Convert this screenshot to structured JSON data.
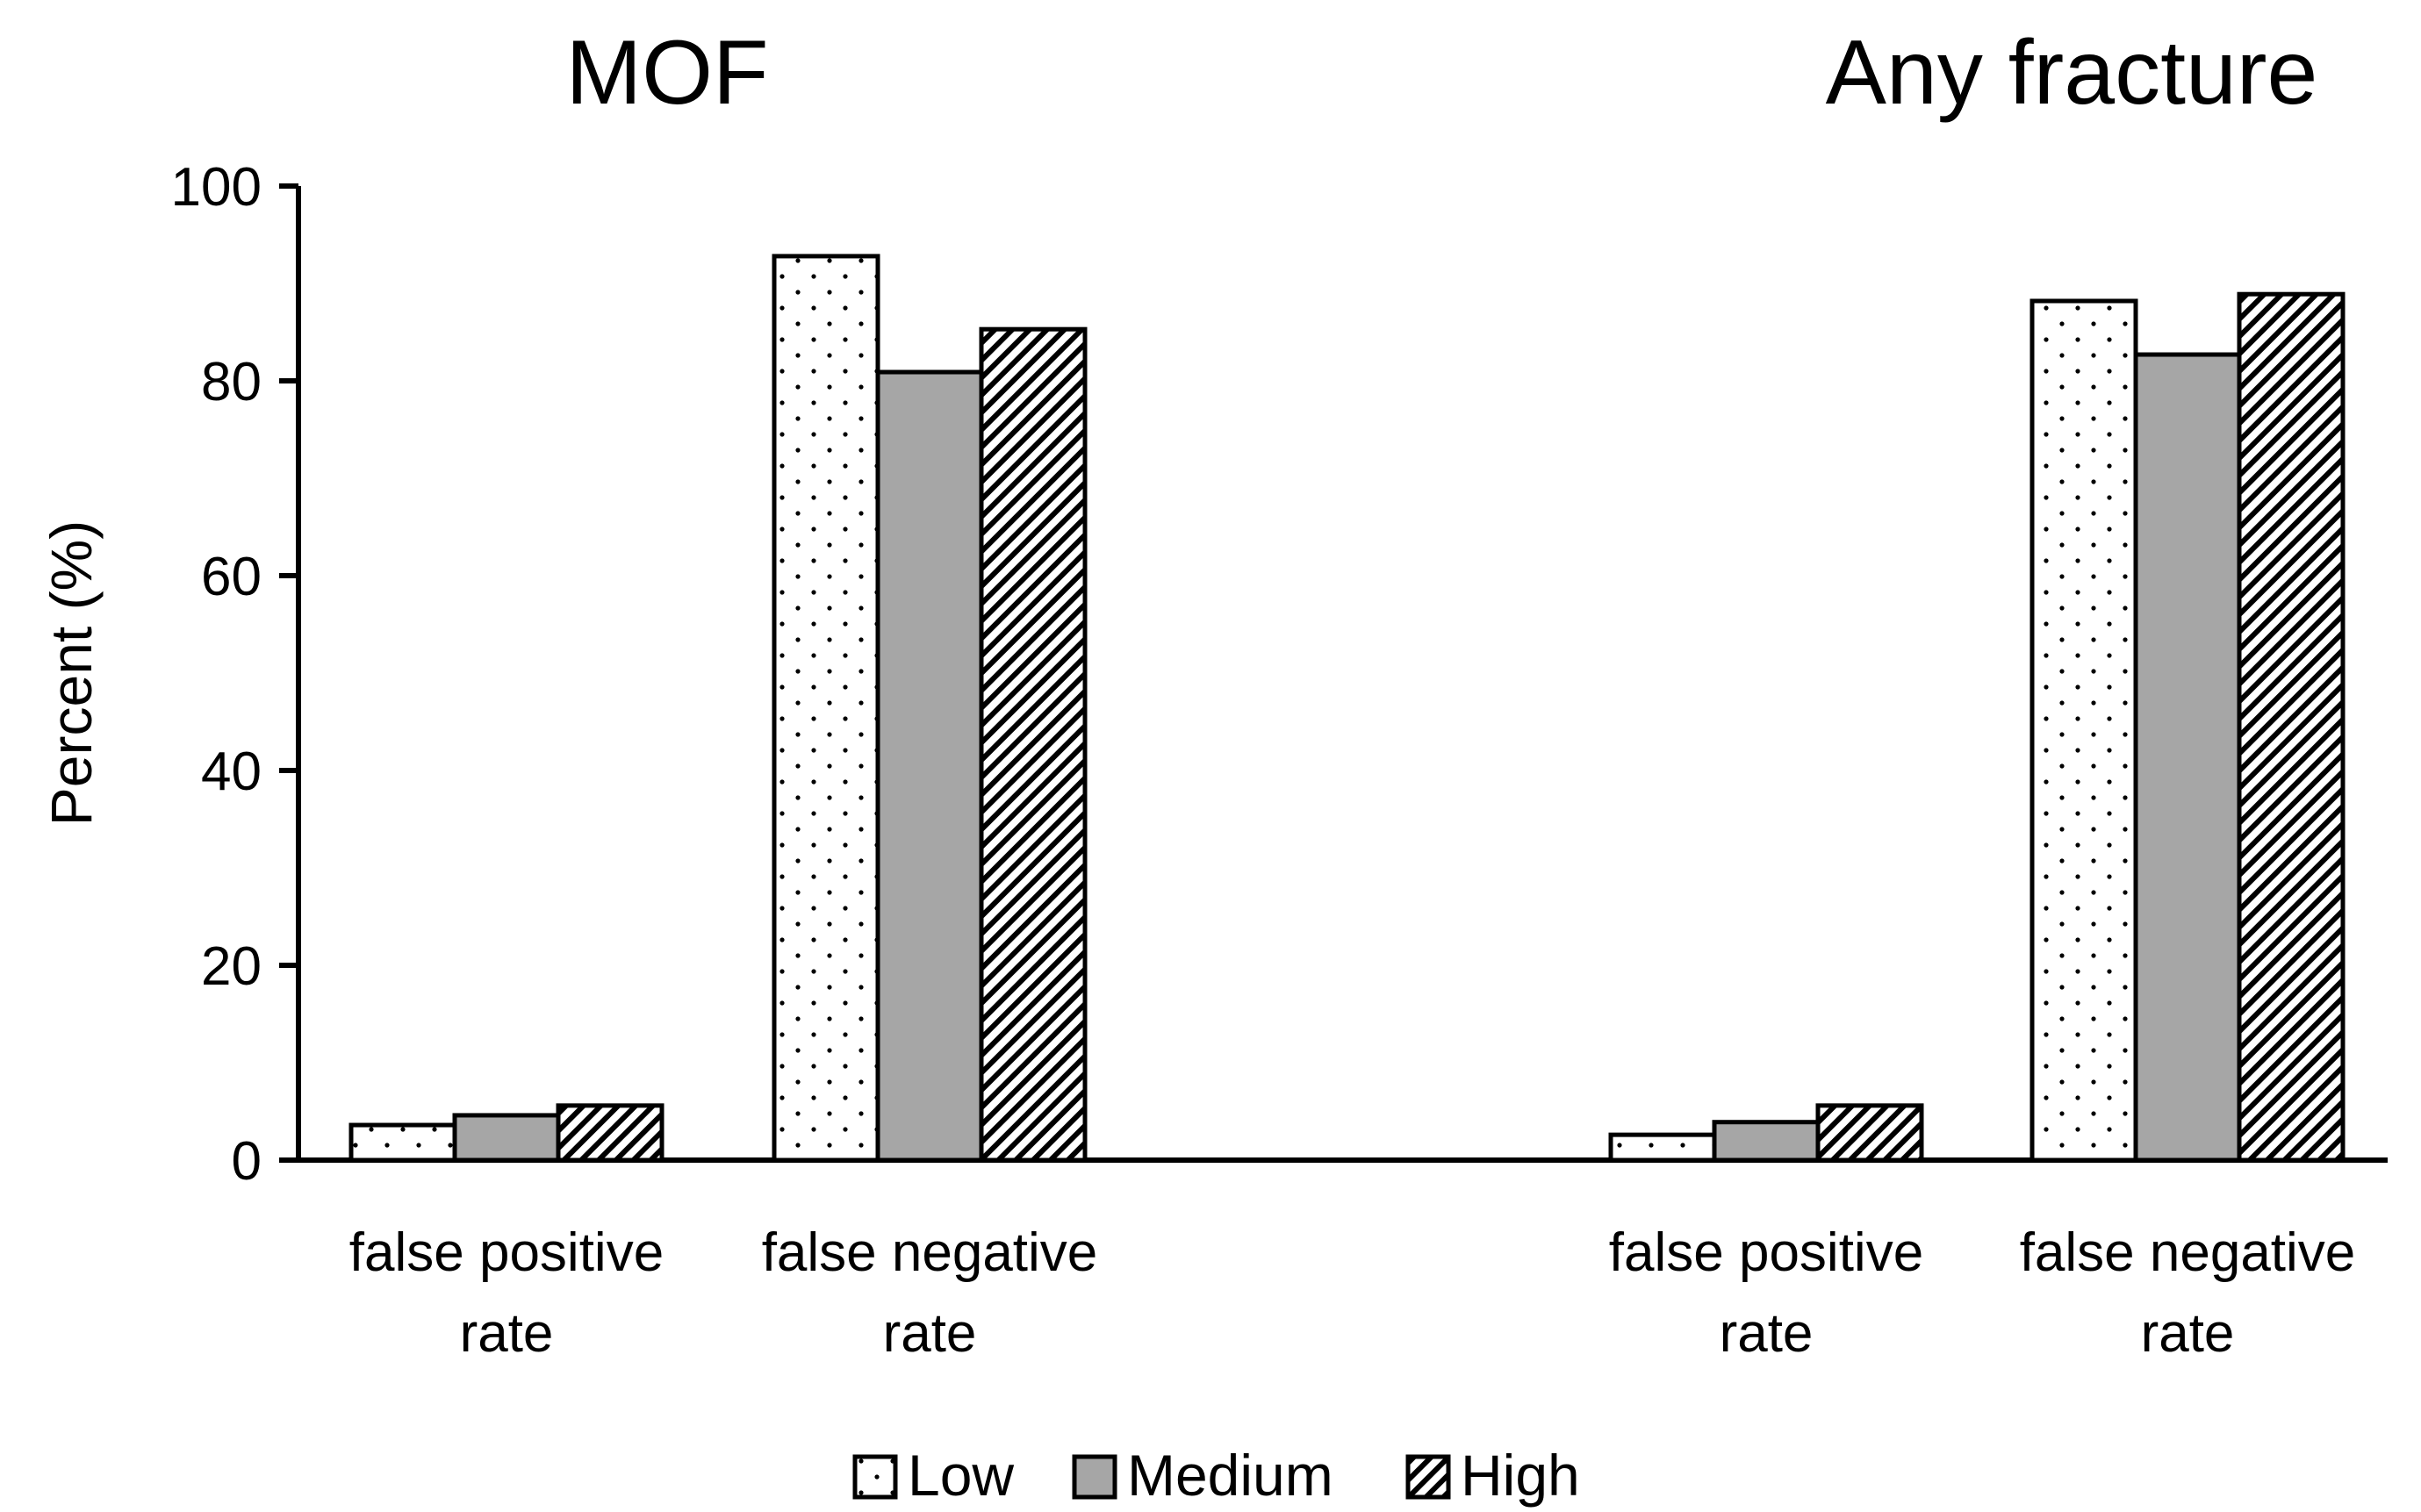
{
  "chart_data": {
    "type": "bar",
    "ylabel": "Percent (%)",
    "ylim": [
      0,
      100
    ],
    "yticks": [
      0,
      20,
      40,
      60,
      80,
      100
    ],
    "grid": false,
    "legend_position": "bottom-center",
    "series_names": [
      "Low",
      "Medium",
      "High"
    ],
    "panels": [
      {
        "title": "MOF",
        "groups": [
          {
            "label_line1": "false positive",
            "label_line2": "rate",
            "values": [
              3.6,
              4.6,
              5.6
            ]
          },
          {
            "label_line1": "false negative",
            "label_line2": "rate",
            "values": [
              92.8,
              80.9,
              85.3
            ]
          }
        ]
      },
      {
        "title": "Any fracture",
        "groups": [
          {
            "label_line1": "false positive",
            "label_line2": "rate",
            "values": [
              2.6,
              3.9,
              5.6
            ]
          },
          {
            "label_line1": "false negative",
            "label_line2": "rate",
            "values": [
              88.2,
              82.7,
              88.9
            ]
          }
        ]
      }
    ]
  }
}
